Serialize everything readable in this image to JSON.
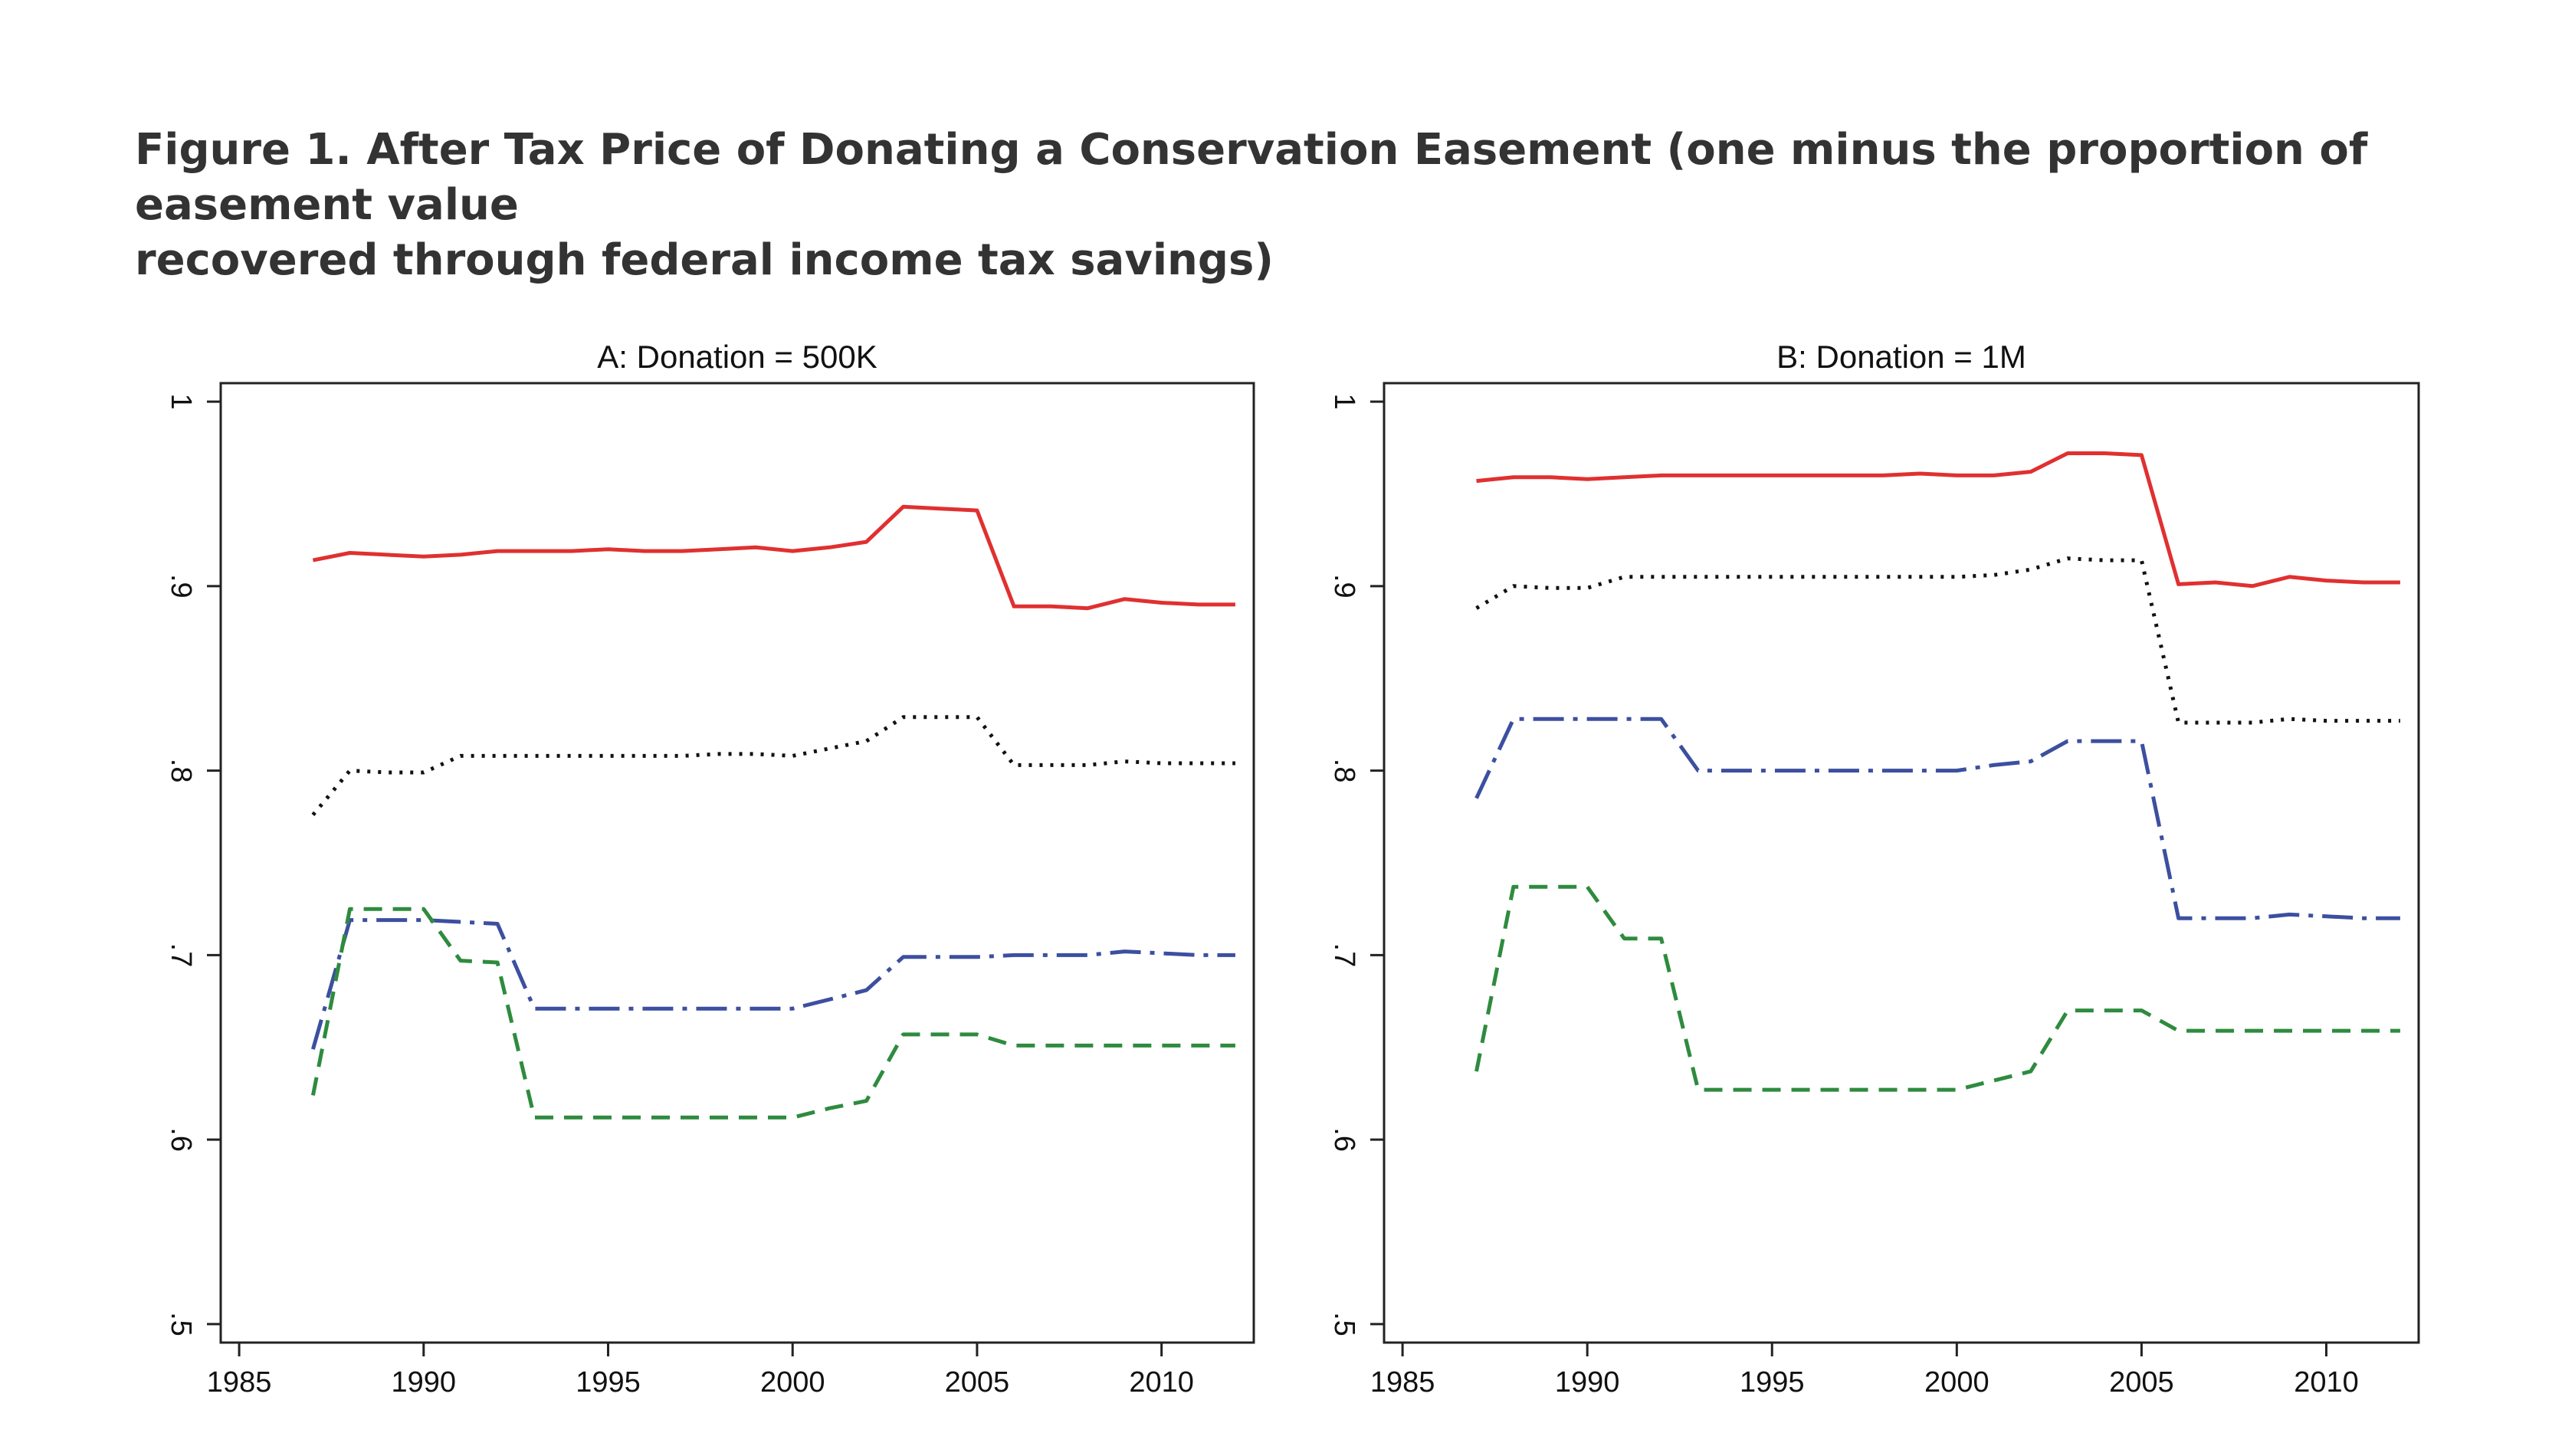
{
  "figure": {
    "title_line1": "Figure 1. After Tax Price of Donating a Conservation Easement (one minus the proportion of easement value",
    "title_line2": "recovered through federal income tax savings)"
  },
  "chart_data": [
    {
      "type": "line",
      "title": "A: Donation = 500K",
      "xlabel": "",
      "ylabel": "",
      "xlim": [
        1984.5,
        2012.5
      ],
      "ylim": [
        0.49,
        1.01
      ],
      "xticks": [
        1985,
        1990,
        1995,
        2000,
        2005,
        2010
      ],
      "yticks": [
        0.5,
        0.6,
        0.7,
        0.8,
        0.9,
        1
      ],
      "ytick_labels": [
        ".5",
        ".6",
        ".7",
        ".8",
        ".9",
        "1"
      ],
      "grid": false,
      "x": [
        1987,
        1988,
        1989,
        1990,
        1991,
        1992,
        1993,
        1994,
        1995,
        1996,
        1997,
        1998,
        1999,
        2000,
        2001,
        2002,
        2003,
        2004,
        2005,
        2006,
        2007,
        2008,
        2009,
        2010,
        2011,
        2012
      ],
      "series": [
        {
          "color": "#e03030",
          "dash": "solid",
          "values": [
            0.914,
            0.918,
            0.917,
            0.916,
            0.917,
            0.919,
            0.919,
            0.919,
            0.92,
            0.919,
            0.919,
            0.92,
            0.921,
            0.919,
            0.921,
            0.924,
            0.943,
            0.942,
            0.941,
            0.889,
            0.889,
            0.888,
            0.893,
            0.891,
            0.89,
            0.89
          ]
        },
        {
          "color": "#111111",
          "dash": "dot",
          "values": [
            0.776,
            0.8,
            0.799,
            0.799,
            0.808,
            0.808,
            0.808,
            0.808,
            0.808,
            0.808,
            0.808,
            0.809,
            0.809,
            0.808,
            0.812,
            0.816,
            0.829,
            0.829,
            0.829,
            0.803,
            0.803,
            0.803,
            0.805,
            0.804,
            0.804,
            0.804
          ]
        },
        {
          "color": "#3c4fa0",
          "dash": "dashdot",
          "values": [
            0.649,
            0.719,
            0.719,
            0.719,
            0.718,
            0.717,
            0.671,
            0.671,
            0.671,
            0.671,
            0.671,
            0.671,
            0.671,
            0.671,
            0.676,
            0.681,
            0.699,
            0.699,
            0.699,
            0.7,
            0.7,
            0.7,
            0.702,
            0.701,
            0.7,
            0.7
          ]
        },
        {
          "color": "#2e8b3e",
          "dash": "dash",
          "values": [
            0.624,
            0.725,
            0.725,
            0.725,
            0.697,
            0.696,
            0.612,
            0.612,
            0.612,
            0.612,
            0.612,
            0.612,
            0.612,
            0.612,
            0.617,
            0.621,
            0.657,
            0.657,
            0.657,
            0.651,
            0.651,
            0.651,
            0.651,
            0.651,
            0.651,
            0.651
          ]
        }
      ]
    },
    {
      "type": "line",
      "title": "B: Donation = 1M",
      "xlabel": "",
      "ylabel": "",
      "xlim": [
        1984.5,
        2012.5
      ],
      "ylim": [
        0.49,
        1.01
      ],
      "xticks": [
        1985,
        1990,
        1995,
        2000,
        2005,
        2010
      ],
      "yticks": [
        0.5,
        0.6,
        0.7,
        0.8,
        0.9,
        1
      ],
      "ytick_labels": [
        ".5",
        ".6",
        ".7",
        ".8",
        ".9",
        "1"
      ],
      "grid": false,
      "x": [
        1987,
        1988,
        1989,
        1990,
        1991,
        1992,
        1993,
        1994,
        1995,
        1996,
        1997,
        1998,
        1999,
        2000,
        2001,
        2002,
        2003,
        2004,
        2005,
        2006,
        2007,
        2008,
        2009,
        2010,
        2011,
        2012
      ],
      "series": [
        {
          "color": "#e03030",
          "dash": "solid",
          "values": [
            0.957,
            0.959,
            0.959,
            0.958,
            0.959,
            0.96,
            0.96,
            0.96,
            0.96,
            0.96,
            0.96,
            0.96,
            0.961,
            0.96,
            0.96,
            0.962,
            0.972,
            0.972,
            0.971,
            0.901,
            0.902,
            0.9,
            0.905,
            0.903,
            0.902,
            0.902
          ]
        },
        {
          "color": "#111111",
          "dash": "dot",
          "values": [
            0.888,
            0.9,
            0.899,
            0.899,
            0.905,
            0.905,
            0.905,
            0.905,
            0.905,
            0.905,
            0.905,
            0.905,
            0.905,
            0.905,
            0.906,
            0.909,
            0.915,
            0.914,
            0.914,
            0.826,
            0.826,
            0.826,
            0.828,
            0.827,
            0.827,
            0.827
          ]
        },
        {
          "color": "#3c4fa0",
          "dash": "dashdot",
          "values": [
            0.785,
            0.828,
            0.828,
            0.828,
            0.828,
            0.828,
            0.8,
            0.8,
            0.8,
            0.8,
            0.8,
            0.8,
            0.8,
            0.8,
            0.803,
            0.805,
            0.816,
            0.816,
            0.816,
            0.72,
            0.72,
            0.72,
            0.722,
            0.721,
            0.72,
            0.72
          ]
        },
        {
          "color": "#2e8b3e",
          "dash": "dash",
          "values": [
            0.637,
            0.737,
            0.737,
            0.737,
            0.709,
            0.709,
            0.627,
            0.627,
            0.627,
            0.627,
            0.627,
            0.627,
            0.627,
            0.627,
            0.632,
            0.637,
            0.67,
            0.67,
            0.67,
            0.659,
            0.659,
            0.659,
            0.659,
            0.659,
            0.659,
            0.659
          ]
        }
      ]
    }
  ]
}
